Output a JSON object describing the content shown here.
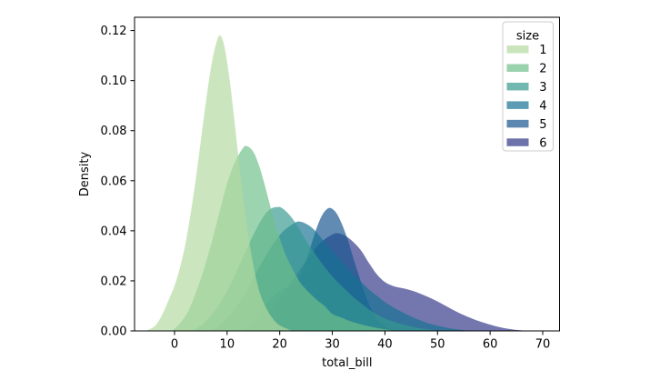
{
  "figure": {
    "background": "#ffffff",
    "spine_color": "#000000",
    "text_color": "#000000"
  },
  "chart_data": {
    "type": "area",
    "subtype": "kde-density",
    "title": "",
    "xlabel": "total_bill",
    "ylabel": "Density",
    "xlim": [
      -7.6,
      73.2
    ],
    "ylim": [
      0,
      0.1253
    ],
    "grid": false,
    "fill_alpha": 0.68,
    "draw_order": "last-series-first",
    "xticks": [
      {
        "value": 0,
        "label": "0"
      },
      {
        "value": 10,
        "label": "10"
      },
      {
        "value": 20,
        "label": "20"
      },
      {
        "value": 30,
        "label": "30"
      },
      {
        "value": 40,
        "label": "40"
      },
      {
        "value": 50,
        "label": "50"
      },
      {
        "value": 60,
        "label": "60"
      },
      {
        "value": 70,
        "label": "70"
      }
    ],
    "yticks": [
      {
        "value": 0.0,
        "label": "0.00"
      },
      {
        "value": 0.02,
        "label": "0.02"
      },
      {
        "value": 0.04,
        "label": "0.04"
      },
      {
        "value": 0.06,
        "label": "0.06"
      },
      {
        "value": 0.08,
        "label": "0.08"
      },
      {
        "value": 0.1,
        "label": "0.10"
      },
      {
        "value": 0.12,
        "label": "0.12"
      }
    ],
    "legend": {
      "title": "size",
      "position": "upper right"
    },
    "series": [
      {
        "name": "1",
        "fill": "#b3da9f",
        "legend_color": "#cae5bc",
        "peak": {
          "x": 8.7,
          "density": 0.118
        },
        "points": [
          [
            -5.5,
            0
          ],
          [
            -4,
            0.0015
          ],
          [
            -3,
            0.004
          ],
          [
            -2,
            0.008
          ],
          [
            -1,
            0.013
          ],
          [
            0,
            0.018
          ],
          [
            1,
            0.025
          ],
          [
            2,
            0.034
          ],
          [
            3,
            0.046
          ],
          [
            4,
            0.06
          ],
          [
            5,
            0.076
          ],
          [
            6,
            0.092
          ],
          [
            7,
            0.106
          ],
          [
            8,
            0.1155
          ],
          [
            8.7,
            0.118
          ],
          [
            9.5,
            0.1135
          ],
          [
            10.5,
            0.1
          ],
          [
            11.5,
            0.082
          ],
          [
            12.5,
            0.063
          ],
          [
            13.5,
            0.046
          ],
          [
            14.5,
            0.032
          ],
          [
            15.5,
            0.021
          ],
          [
            16.5,
            0.0135
          ],
          [
            18,
            0.007
          ],
          [
            19.5,
            0.003
          ],
          [
            21,
            0.0012
          ],
          [
            22.5,
            0
          ]
        ]
      },
      {
        "name": "2",
        "fill": "#6fbf8b",
        "legend_color": "#9ad2ae",
        "peak": {
          "x": 13.8,
          "density": 0.0738
        },
        "points": [
          [
            -0.5,
            0
          ],
          [
            1,
            0.003
          ],
          [
            2.5,
            0.0075
          ],
          [
            4,
            0.015
          ],
          [
            5.5,
            0.024
          ],
          [
            7,
            0.035
          ],
          [
            8.5,
            0.047
          ],
          [
            10,
            0.059
          ],
          [
            11.5,
            0.0675
          ],
          [
            13,
            0.073
          ],
          [
            13.8,
            0.0738
          ],
          [
            15,
            0.0715
          ],
          [
            16,
            0.0665
          ],
          [
            17,
            0.0595
          ],
          [
            18,
            0.0515
          ],
          [
            19,
            0.0435
          ],
          [
            20,
            0.037
          ],
          [
            21,
            0.031
          ],
          [
            22,
            0.0265
          ],
          [
            23,
            0.0225
          ],
          [
            24,
            0.019
          ],
          [
            25.5,
            0.0155
          ],
          [
            27,
            0.0125
          ],
          [
            28.5,
            0.01
          ],
          [
            30,
            0.0068
          ],
          [
            31.5,
            0.0055
          ],
          [
            33,
            0.0042
          ],
          [
            34.5,
            0.0032
          ],
          [
            36,
            0.0023
          ],
          [
            37.5,
            0.0016
          ],
          [
            39,
            0.001
          ],
          [
            40.5,
            0.0005
          ],
          [
            42.5,
            0
          ]
        ]
      },
      {
        "name": "3",
        "fill": "#369a90",
        "legend_color": "#72b8b1",
        "peak": {
          "x": 19,
          "density": 0.0495
        },
        "points": [
          [
            3.5,
            0
          ],
          [
            5,
            0.002
          ],
          [
            6.5,
            0.005
          ],
          [
            8,
            0.009
          ],
          [
            9.5,
            0.014
          ],
          [
            11,
            0.02
          ],
          [
            12.5,
            0.027
          ],
          [
            14,
            0.034
          ],
          [
            15.5,
            0.0405
          ],
          [
            17,
            0.046
          ],
          [
            18.3,
            0.0488
          ],
          [
            19.5,
            0.0495
          ],
          [
            20.5,
            0.049
          ],
          [
            22,
            0.046
          ],
          [
            23.5,
            0.0415
          ],
          [
            25,
            0.036
          ],
          [
            26.5,
            0.0315
          ],
          [
            28,
            0.027
          ],
          [
            29.5,
            0.023
          ],
          [
            31,
            0.0195
          ],
          [
            32.5,
            0.0165
          ],
          [
            34,
            0.0135
          ],
          [
            35.5,
            0.011
          ],
          [
            37,
            0.0085
          ],
          [
            38.5,
            0.0066
          ],
          [
            40,
            0.005
          ],
          [
            41.5,
            0.0038
          ],
          [
            43,
            0.0028
          ],
          [
            44.5,
            0.002
          ],
          [
            46,
            0.0013
          ],
          [
            47.5,
            0.0008
          ],
          [
            49,
            0.0004
          ],
          [
            50.5,
            0
          ]
        ]
      },
      {
        "name": "4",
        "fill": "#157294",
        "legend_color": "#5b9cb4",
        "peak": {
          "x": 23.5,
          "density": 0.0437
        },
        "points": [
          [
            7,
            0
          ],
          [
            8.5,
            0.002
          ],
          [
            10,
            0.005
          ],
          [
            11.5,
            0.009
          ],
          [
            13,
            0.0135
          ],
          [
            14.5,
            0.019
          ],
          [
            16,
            0.025
          ],
          [
            17.5,
            0.0305
          ],
          [
            19,
            0.0355
          ],
          [
            20.5,
            0.0395
          ],
          [
            22,
            0.042
          ],
          [
            23.5,
            0.0437
          ],
          [
            25,
            0.0428
          ],
          [
            26.5,
            0.0405
          ],
          [
            28,
            0.0368
          ],
          [
            29.5,
            0.033
          ],
          [
            31,
            0.0295
          ],
          [
            32.5,
            0.026
          ],
          [
            34,
            0.0225
          ],
          [
            35.5,
            0.0195
          ],
          [
            37,
            0.0165
          ],
          [
            38.5,
            0.014
          ],
          [
            40,
            0.0115
          ],
          [
            41.5,
            0.0095
          ],
          [
            43,
            0.0078
          ],
          [
            44.5,
            0.0062
          ],
          [
            46,
            0.0048
          ],
          [
            47.5,
            0.0036
          ],
          [
            49,
            0.0026
          ],
          [
            50.5,
            0.0018
          ],
          [
            52,
            0.0012
          ],
          [
            53.5,
            0.0007
          ],
          [
            55,
            0.0003
          ],
          [
            56.5,
            0
          ]
        ]
      },
      {
        "name": "5",
        "fill": "#16548e",
        "legend_color": "#5c87b0",
        "peak": {
          "x": 29.5,
          "density": 0.049
        },
        "points": [
          [
            12.5,
            0
          ],
          [
            14,
            0.0025
          ],
          [
            15.5,
            0.006
          ],
          [
            17,
            0.0098
          ],
          [
            18.5,
            0.0133
          ],
          [
            20,
            0.016
          ],
          [
            21,
            0.0172
          ],
          [
            22,
            0.0178
          ],
          [
            23,
            0.019
          ],
          [
            24,
            0.0225
          ],
          [
            25,
            0.028
          ],
          [
            26,
            0.0345
          ],
          [
            27,
            0.041
          ],
          [
            28,
            0.046
          ],
          [
            29,
            0.0487
          ],
          [
            29.8,
            0.049
          ],
          [
            30.8,
            0.047
          ],
          [
            31.8,
            0.0428
          ],
          [
            33,
            0.036
          ],
          [
            34,
            0.029
          ],
          [
            35,
            0.0225
          ],
          [
            36,
            0.016
          ],
          [
            37,
            0.0105
          ],
          [
            38,
            0.0063
          ],
          [
            39,
            0.0035
          ],
          [
            40,
            0.0018
          ],
          [
            41.5,
            0.0006
          ],
          [
            43,
            0
          ]
        ]
      },
      {
        "name": "6",
        "fill": "#303687",
        "legend_color": "#6e72ab",
        "peak": {
          "x": 31,
          "density": 0.039
        },
        "points": [
          [
            13,
            0
          ],
          [
            15,
            0.0025
          ],
          [
            17,
            0.006
          ],
          [
            19,
            0.0105
          ],
          [
            21,
            0.016
          ],
          [
            23,
            0.022
          ],
          [
            25,
            0.028
          ],
          [
            27,
            0.0335
          ],
          [
            28.5,
            0.0365
          ],
          [
            30,
            0.0385
          ],
          [
            31,
            0.039
          ],
          [
            32.5,
            0.038
          ],
          [
            34,
            0.0355
          ],
          [
            35.5,
            0.032
          ],
          [
            37,
            0.027
          ],
          [
            38.5,
            0.0225
          ],
          [
            40,
            0.0195
          ],
          [
            41.5,
            0.018
          ],
          [
            43,
            0.0172
          ],
          [
            44.5,
            0.0165
          ],
          [
            46,
            0.0155
          ],
          [
            47.5,
            0.0142
          ],
          [
            49,
            0.0128
          ],
          [
            50.5,
            0.0112
          ],
          [
            52,
            0.0095
          ],
          [
            53.5,
            0.0078
          ],
          [
            55,
            0.0063
          ],
          [
            56.5,
            0.005
          ],
          [
            58,
            0.0038
          ],
          [
            59.5,
            0.0028
          ],
          [
            61,
            0.0019
          ],
          [
            62.5,
            0.0012
          ],
          [
            64,
            0.0007
          ],
          [
            65.5,
            0.0003
          ],
          [
            67,
            0
          ]
        ]
      }
    ]
  }
}
